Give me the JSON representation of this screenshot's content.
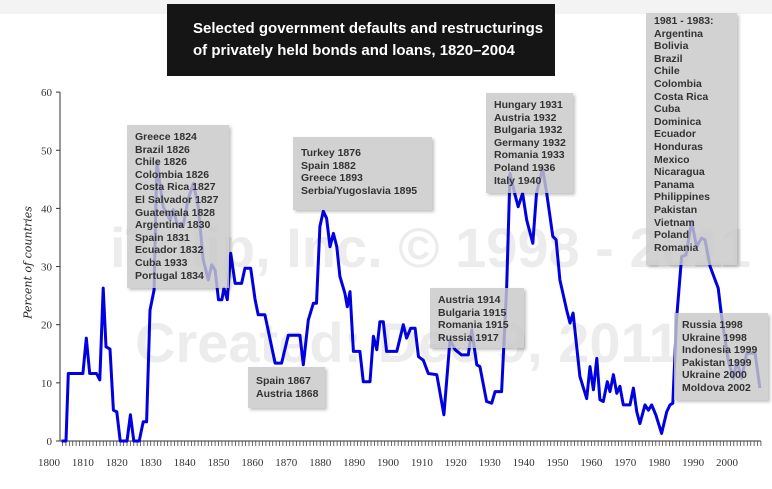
{
  "title_lines": [
    "Selected government defaults and restructurings",
    "of privately held bonds and loans, 1820–2004"
  ],
  "watermark": [
    "iTulip, Inc. © 1998 - 2011",
    "Created: Dec 9, 2011"
  ],
  "annotations": {
    "box_1820s": [
      "Greece 1824",
      "Brazil 1826",
      "Chile 1826",
      "Colombia 1826",
      "Costa Rica 1827",
      "El Salvador 1827",
      "Guatemala 1828",
      "Argentina 1830",
      "Spain 1831",
      "Ecuador 1832",
      "Cuba 1933",
      "Portugal 1834"
    ],
    "box_1870s": [
      "Turkey 1876",
      "Spain 1882",
      "Greece 1893",
      "Serbia/Yugoslavia 1895"
    ],
    "box_1860s": [
      "Spain 1867",
      "Austria 1868"
    ],
    "box_1930s": [
      "Hungary 1931",
      "Austria 1932",
      "Bulgaria 1932",
      "Germany 1932",
      "Romania 1933",
      "Poland 1936",
      "Italy 1940"
    ],
    "box_1910s": [
      "Austria 1914",
      "Bulgaria 1915",
      "Romania 1915",
      "Russia 1917"
    ],
    "box_1980s": [
      "1981 - 1983:",
      "Argentina",
      "Bolivia",
      "Brazil",
      "Chile",
      "Colombia",
      "Costa Rica",
      "Cuba",
      "Dominica",
      "Ecuador",
      "Honduras",
      "Mexico",
      "Nicaragua",
      "Panama",
      "Philippines",
      "Pakistan",
      "Vietnam",
      "Poland",
      "Romania"
    ],
    "box_1990s": [
      "Russia 1998",
      "Ukraine 1998",
      "Indonesia 1999",
      "Pakistan 1999",
      "Ukraine 2000",
      "Moldova 2002"
    ]
  },
  "chart_data": {
    "type": "line",
    "title": "Selected government defaults and restructurings of privately held bonds and loans, 1820–2004",
    "xlabel": "",
    "ylabel": "Percent of countries",
    "xlim": [
      1800,
      2010
    ],
    "ylim": [
      0,
      60
    ],
    "xticks": [
      "1800",
      "1810",
      "1820",
      "1830",
      "1840",
      "1850",
      "1860",
      "1870",
      "1880",
      "1890",
      "1900",
      "1910",
      "1920",
      "1930",
      "1940",
      "1950",
      "1960",
      "1970",
      "1980",
      "1990",
      "2000"
    ],
    "yticks": [
      "0",
      "10",
      "20",
      "30",
      "40",
      "50",
      "60"
    ],
    "grid": false,
    "line_color": "#0000e0",
    "x": [
      1803.7,
      1805,
      1805.7,
      1810,
      1811,
      1812,
      1814,
      1815,
      1816,
      1816.8,
      1818,
      1819,
      1820,
      1821,
      1823,
      1824,
      1825,
      1826.6,
      1827.8,
      1828.8,
      1829.8,
      1831,
      1831.8,
      1833.7,
      1835.7,
      1836.7,
      1837.7,
      1839.6,
      1841,
      1842.6,
      1844,
      1845.5,
      1847,
      1848,
      1849,
      1850,
      1851,
      1851.6,
      1852.6,
      1853.6,
      1854.9,
      1856.8,
      1857.8,
      1859.5,
      1860.8,
      1861.7,
      1863.7,
      1866.7,
      1868.6,
      1870.6,
      1874,
      1875,
      1876.5,
      1878,
      1878.9,
      1879.9,
      1880.9,
      1881.9,
      1882.9,
      1883.9,
      1884.9,
      1885.8,
      1887.3,
      1888,
      1888.8,
      1889.8,
      1891.7,
      1892.7,
      1894.7,
      1895.7,
      1896.7,
      1897.6,
      1898.6,
      1899.6,
      1902.6,
      1904.5,
      1905.5,
      1906.7,
      1908,
      1909,
      1910.4,
      1911.9,
      1914.4,
      1916.5,
      1918.3,
      1919.8,
      1921.7,
      1923.7,
      1924.7,
      1926.2,
      1927.1,
      1929.1,
      1930.6,
      1931.6,
      1933.5,
      1935,
      1936,
      1937.5,
      1938.4,
      1939.7,
      1940.9,
      1942.7,
      1943.8,
      1945.6,
      1946.8,
      1948.6,
      1949.6,
      1950.7,
      1952.7,
      1953.7,
      1954.6,
      1956.6,
      1958.6,
      1959.6,
      1960.6,
      1961.6,
      1962.5,
      1963.5,
      1964.7,
      1965.5,
      1966.5,
      1967.5,
      1968.4,
      1969.4,
      1971.4,
      1972.4,
      1973.4,
      1974.3,
      1975.8,
      1976.8,
      1977.8,
      1979,
      1980.7,
      1982.2,
      1983.2,
      1984,
      1985.1,
      1986.6,
      1987.9,
      1989.6,
      1991,
      1992.5,
      1993.5,
      1995,
      1997.4,
      1998.4,
      2000.4,
      2001.9,
      2002.9,
      2004.3,
      2005.8,
      2008.3,
      2009.7
    ],
    "y": [
      0,
      0,
      11.6,
      11.6,
      17.7,
      11.6,
      11.6,
      10.5,
      26.3,
      16.2,
      15.8,
      5.3,
      5,
      0,
      0,
      4.5,
      0,
      0,
      3.3,
      3.3,
      22.5,
      26,
      48,
      40.3,
      38,
      39.8,
      37.5,
      36.9,
      41.5,
      44.3,
      40.3,
      31.2,
      27.7,
      30.3,
      29.4,
      24.3,
      24.3,
      26.3,
      24.3,
      32.3,
      27.1,
      27.1,
      29.7,
      29.7,
      24.3,
      21.7,
      21.7,
      13.4,
      13.4,
      18.2,
      18.2,
      13.1,
      20.8,
      23.7,
      23.7,
      36.9,
      39.5,
      38.3,
      33.4,
      35.7,
      33.4,
      28.3,
      25.4,
      23.1,
      25.7,
      15.4,
      15.4,
      10.2,
      10.2,
      18,
      15.7,
      20.5,
      20.5,
      15.4,
      15.4,
      20,
      17.7,
      19.4,
      19.4,
      14.5,
      13.9,
      11.6,
      11.4,
      4.5,
      17.4,
      15.7,
      14.8,
      14.8,
      19.1,
      13.1,
      12.8,
      6.8,
      6.5,
      8.5,
      8.5,
      26.6,
      46,
      42.3,
      40.3,
      42.6,
      38,
      34,
      42.6,
      46.9,
      42.6,
      35.2,
      34.6,
      27.7,
      22.5,
      20.3,
      22,
      11.1,
      7.3,
      12.8,
      8.8,
      14.2,
      7.1,
      6.8,
      10.2,
      8.5,
      11.4,
      8.2,
      9.4,
      6.2,
      6.2,
      9.1,
      5,
      3,
      6.2,
      5.3,
      6.2,
      4.5,
      1.3,
      5,
      6.2,
      6.5,
      20.8,
      31.7,
      32,
      37.8,
      33.4,
      34.9,
      34.6,
      30,
      26.3,
      21.4,
      13.7,
      10.8,
      13.7,
      10.8,
      15.1,
      15.1,
      9.1
    ]
  }
}
